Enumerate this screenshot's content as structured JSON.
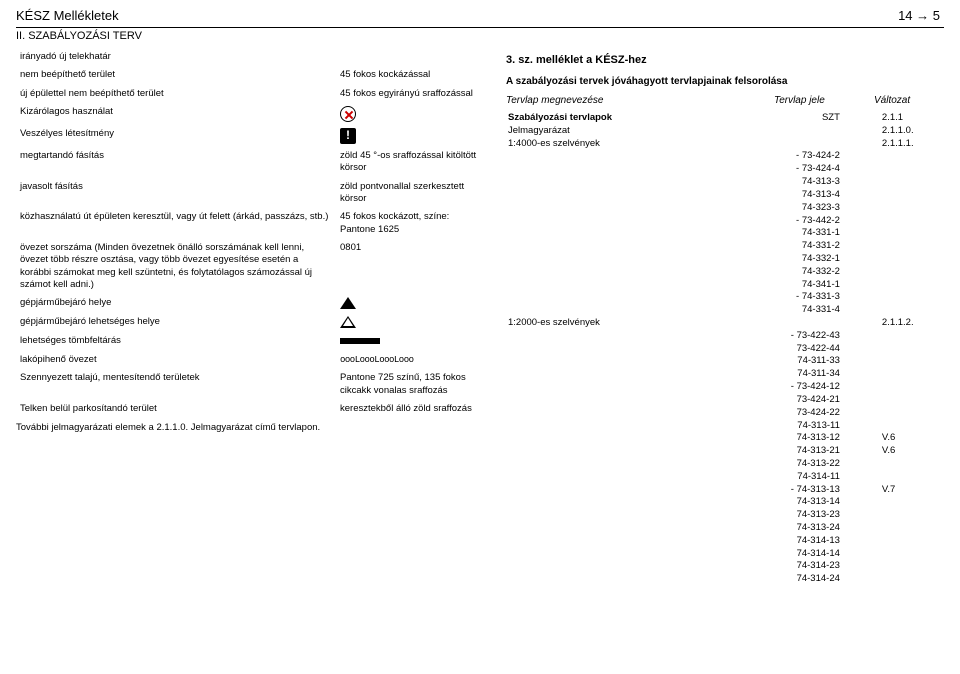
{
  "header": {
    "left": "KÉSZ Mellékletek",
    "right": "14 → 5"
  },
  "subhead": "II. SZABÁLYOZÁSI TERV",
  "left_rows": [
    {
      "c1": "irányadó új telekhatár",
      "c2": "",
      "sym": ""
    },
    {
      "c1": "nem beépíthető terület",
      "c2": "45 fokos kockázással",
      "sym": ""
    },
    {
      "c1": "új épülettel nem beépíthető terület",
      "c2": "45 fokos egyirányú sraffozással",
      "sym": ""
    },
    {
      "c1": "Kizárólagos használat",
      "c2": "",
      "sym": "circle-red-x"
    },
    {
      "c1": "Veszélyes létesítmény",
      "c2": "",
      "sym": "exclaim"
    },
    {
      "c1": "megtartandó fásítás",
      "c2": "zöld 45 °-os sraffozással kitöltött körsor",
      "sym": ""
    },
    {
      "c1": "javasolt fásítás",
      "c2": "zöld pontvonallal szerkesztett körsor",
      "sym": ""
    },
    {
      "c1": "közhasználatú út épületen keresztül, vagy út felett (árkád, passzázs, stb.)",
      "c2": "45 fokos kockázott, színe: Pantone 1625",
      "sym": ""
    },
    {
      "c1": "övezet sorszáma\n(Minden övezetnek önálló sorszámának kell lenni, övezet több részre osztása, vagy több övezet egyesítése esetén a korábbi számokat meg kell szüntetni, és folytatólagos számozással új számot kell adni.)",
      "c2": "0801",
      "sym": ""
    },
    {
      "c1": "gépjárműbejáró helye",
      "c2": "",
      "sym": "tri-up"
    },
    {
      "c1": "gépjárműbejáró lehetséges helye",
      "c2": "",
      "sym": "tri-up-outline"
    },
    {
      "c1": "lehetséges tömbfeltárás",
      "c2": "",
      "sym": "blk-line"
    },
    {
      "c1": "lakópihenő övezet",
      "c2": "oooLoooLoooLooo",
      "mono": true,
      "sym": ""
    },
    {
      "c1": "Szennyezett talajú, mentesítendő területek",
      "c2": "Pantone 725 színű, 135 fokos cikcakk vonalas sraffozás",
      "sym": ""
    },
    {
      "c1": "Telken belül parkosítandó terület",
      "c2": "keresztekből álló zöld sraffozás",
      "sym": ""
    }
  ],
  "left_footer": "További jelmagyarázati elemek a 2.1.1.0. Jelmagyarázat című tervlapon.",
  "right": {
    "title": "3. sz. melléklet a KÉSZ-hez",
    "subtitle": "A szabályozási tervek jóváhagyott tervlapjainak felsorolása",
    "head": {
      "c1": "Tervlap megnevezése",
      "c2": "Tervlap jele",
      "c3": "Változat"
    },
    "rows": [
      {
        "c1": "Szabályozási tervlapok",
        "c2": "SZT",
        "c3": "2.1.1",
        "bold": true
      },
      {
        "c1": "Jelmagyarázat",
        "c2": "",
        "c3": "2.1.1.0."
      },
      {
        "c1": "1:4000-es szelvények",
        "c2": "",
        "c3": "2.1.1.1."
      },
      {
        "c1": "",
        "c2": "- 73-424-2",
        "c3": ""
      },
      {
        "c1": "",
        "c2": "- 73-424-4",
        "c3": ""
      },
      {
        "c1": "",
        "c2": "74-313-3",
        "c3": ""
      },
      {
        "c1": "",
        "c2": "74-313-4",
        "c3": ""
      },
      {
        "c1": "",
        "c2": "74-323-3",
        "c3": ""
      },
      {
        "c1": "",
        "c2": "- 73-442-2",
        "c3": ""
      },
      {
        "c1": "",
        "c2": "74-331-1",
        "c3": ""
      },
      {
        "c1": "",
        "c2": "74-331-2",
        "c3": ""
      },
      {
        "c1": "",
        "c2": "74-332-1",
        "c3": ""
      },
      {
        "c1": "",
        "c2": "74-332-2",
        "c3": ""
      },
      {
        "c1": "",
        "c2": "74-341-1",
        "c3": ""
      },
      {
        "c1": "",
        "c2": "- 74-331-3",
        "c3": ""
      },
      {
        "c1": "",
        "c2": "74-331-4",
        "c3": ""
      },
      {
        "c1": "1:2000-es szelvények",
        "c2": "",
        "c3": "2.1.1.2."
      },
      {
        "c1": "",
        "c2": "- 73-422-43",
        "c3": ""
      },
      {
        "c1": "",
        "c2": "73-422-44",
        "c3": ""
      },
      {
        "c1": "",
        "c2": "74-311-33",
        "c3": ""
      },
      {
        "c1": "",
        "c2": "74-311-34",
        "c3": ""
      },
      {
        "c1": "",
        "c2": "- 73-424-12",
        "c3": ""
      },
      {
        "c1": "",
        "c2": "73-424-21",
        "c3": ""
      },
      {
        "c1": "",
        "c2": "73-424-22",
        "c3": ""
      },
      {
        "c1": "",
        "c2": "74-313-11",
        "c3": ""
      },
      {
        "c1": "",
        "c2": "74-313-12",
        "c3": "V.6"
      },
      {
        "c1": "",
        "c2": "74-313-21",
        "c3": "V.6"
      },
      {
        "c1": "",
        "c2": "74-313-22",
        "c3": ""
      },
      {
        "c1": "",
        "c2": "74-314-11",
        "c3": ""
      },
      {
        "c1": "",
        "c2": "- 74-313-13",
        "c3": "V.7"
      },
      {
        "c1": "",
        "c2": "74-313-14",
        "c3": ""
      },
      {
        "c1": "",
        "c2": "74-313-23",
        "c3": ""
      },
      {
        "c1": "",
        "c2": "74-313-24",
        "c3": ""
      },
      {
        "c1": "",
        "c2": "74-314-13",
        "c3": ""
      },
      {
        "c1": "",
        "c2": "74-314-14",
        "c3": ""
      },
      {
        "c1": "",
        "c2": "74-314-23",
        "c3": ""
      },
      {
        "c1": "",
        "c2": "74-314-24",
        "c3": ""
      }
    ]
  }
}
